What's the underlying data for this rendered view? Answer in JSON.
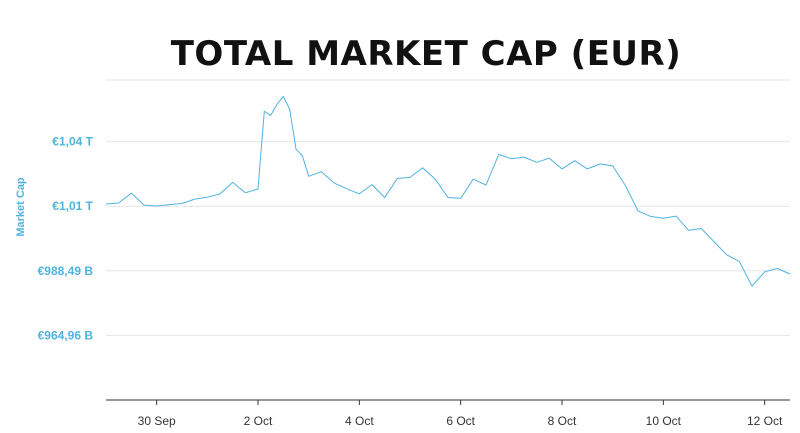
{
  "chart_data": {
    "type": "line",
    "title": "TOTAL MARKET CAP (EUR)",
    "xlabel": "",
    "ylabel": "Market Cap",
    "x_ticks": [
      "30 Sep",
      "2 Oct",
      "4 Oct",
      "6 Oct",
      "8 Oct",
      "10 Oct",
      "12 Oct"
    ],
    "y_ticks": [
      "€964,96 B",
      "€988,49 B",
      "€1,01 T",
      "€1,04 T"
    ],
    "y_tick_values": [
      964.96,
      988.49,
      1012.0,
      1035.5
    ],
    "x_range": [
      "2019-09-29T00:00",
      "2019-10-12T12:00"
    ],
    "ylim": [
      941.4,
      1058.0
    ],
    "grid": true,
    "line_color": "#4fb3e0",
    "series": [
      {
        "x": [
          "2019-09-29T00:00",
          "2019-09-29T06:00",
          "2019-09-29T12:00",
          "2019-09-29T18:00",
          "2019-09-30T00:00",
          "2019-09-30T06:00",
          "2019-09-30T12:00",
          "2019-09-30T18:00",
          "2019-10-01T00:00",
          "2019-10-01T06:00",
          "2019-10-01T12:00",
          "2019-10-01T18:00",
          "2019-10-02T00:00",
          "2019-10-02T03:00",
          "2019-10-02T06:00",
          "2019-10-02T09:00",
          "2019-10-02T12:00",
          "2019-10-02T15:00",
          "2019-10-02T18:00",
          "2019-10-02T21:00",
          "2019-10-03T00:00",
          "2019-10-03T06:00",
          "2019-10-03T12:00",
          "2019-10-03T18:00",
          "2019-10-04T00:00",
          "2019-10-04T06:00",
          "2019-10-04T12:00",
          "2019-10-04T18:00",
          "2019-10-05T00:00",
          "2019-10-05T06:00",
          "2019-10-05T12:00",
          "2019-10-05T18:00",
          "2019-10-06T00:00",
          "2019-10-06T06:00",
          "2019-10-06T12:00",
          "2019-10-06T18:00",
          "2019-10-07T00:00",
          "2019-10-07T06:00",
          "2019-10-07T12:00",
          "2019-10-07T18:00",
          "2019-10-08T00:00",
          "2019-10-08T06:00",
          "2019-10-08T12:00",
          "2019-10-08T18:00",
          "2019-10-09T00:00",
          "2019-10-09T06:00",
          "2019-10-09T12:00",
          "2019-10-09T18:00",
          "2019-10-10T00:00",
          "2019-10-10T06:00",
          "2019-10-10T12:00",
          "2019-10-10T18:00",
          "2019-10-11T00:00",
          "2019-10-11T06:00",
          "2019-10-11T12:00",
          "2019-10-11T18:00",
          "2019-10-12T00:00",
          "2019-10-12T06:00",
          "2019-10-12T12:00"
        ],
        "values": [
          1012.8,
          1013.2,
          1016.8,
          1012.4,
          1012.1,
          1012.6,
          1013.0,
          1014.6,
          1015.3,
          1016.5,
          1020.7,
          1016.9,
          1018.3,
          1046.6,
          1045.1,
          1049.2,
          1052.0,
          1047.4,
          1032.8,
          1030.5,
          1022.9,
          1024.6,
          1020.5,
          1018.4,
          1016.5,
          1019.9,
          1015.2,
          1022.1,
          1022.5,
          1026.0,
          1021.8,
          1015.2,
          1014.9,
          1021.9,
          1019.7,
          1030.9,
          1029.3,
          1029.9,
          1028.0,
          1029.5,
          1025.6,
          1028.6,
          1025.6,
          1027.4,
          1026.7,
          1019.6,
          1010.3,
          1008.3,
          1007.6,
          1008.4,
          1003.2,
          1003.9,
          999.1,
          994.3,
          991.9,
          982.9,
          988.1,
          989.3,
          987.3
        ]
      }
    ]
  }
}
